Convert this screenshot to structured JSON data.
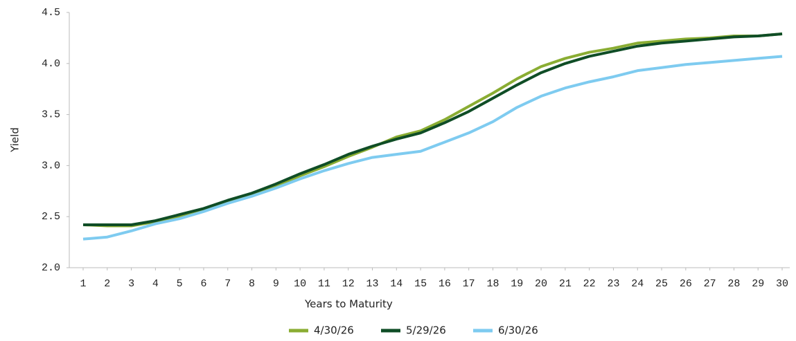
{
  "chart_data": {
    "type": "line",
    "xlabel": "Years to Maturity",
    "ylabel": "Yield",
    "x": [
      1,
      2,
      3,
      4,
      5,
      6,
      7,
      8,
      9,
      10,
      11,
      12,
      13,
      14,
      15,
      16,
      17,
      18,
      19,
      20,
      21,
      22,
      23,
      24,
      25,
      26,
      27,
      28,
      29,
      30
    ],
    "xlim": [
      1,
      30
    ],
    "xticks": [
      1,
      2,
      3,
      4,
      5,
      6,
      7,
      8,
      9,
      10,
      11,
      12,
      13,
      14,
      15,
      16,
      17,
      18,
      19,
      20,
      21,
      22,
      23,
      24,
      25,
      26,
      27,
      28,
      29,
      30
    ],
    "ylim": [
      2,
      4.5
    ],
    "yticks": [
      {
        "value": 2,
        "label": "2.0"
      },
      2.5,
      {
        "value": 3,
        "label": "3.0"
      },
      3.5,
      {
        "value": 4,
        "label": "4.0"
      },
      4.5
    ],
    "grid": false,
    "legend": "bottom",
    "series": [
      {
        "name": "4/30/26",
        "color": "#8aad33",
        "values": [
          2.42,
          2.41,
          2.41,
          2.45,
          2.5,
          2.56,
          2.64,
          2.71,
          2.8,
          2.9,
          2.99,
          3.09,
          3.18,
          3.28,
          3.34,
          3.45,
          3.58,
          3.71,
          3.85,
          3.97,
          4.05,
          4.11,
          4.15,
          4.2,
          4.22,
          4.24,
          4.25,
          4.27,
          4.27,
          4.29
        ]
      },
      {
        "name": "5/29/26",
        "color": "#0f4d26",
        "values": [
          2.42,
          2.42,
          2.42,
          2.46,
          2.52,
          2.58,
          2.66,
          2.73,
          2.82,
          2.92,
          3.01,
          3.11,
          3.19,
          3.26,
          3.32,
          3.42,
          3.53,
          3.66,
          3.79,
          3.91,
          4.0,
          4.07,
          4.12,
          4.17,
          4.2,
          4.22,
          4.24,
          4.26,
          4.27,
          4.29
        ]
      },
      {
        "name": "6/30/26",
        "color": "#7ecbf0",
        "values": [
          2.28,
          2.3,
          2.36,
          2.43,
          2.48,
          2.55,
          2.63,
          2.7,
          2.78,
          2.87,
          2.95,
          3.02,
          3.08,
          3.11,
          3.14,
          3.23,
          3.32,
          3.43,
          3.57,
          3.68,
          3.76,
          3.82,
          3.87,
          3.93,
          3.96,
          3.99,
          4.01,
          4.03,
          4.05,
          4.07
        ]
      }
    ]
  }
}
